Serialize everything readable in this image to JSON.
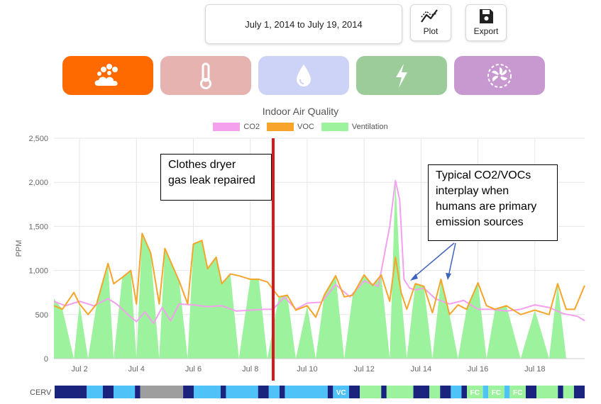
{
  "toolbar": {
    "date_range": "July 1, 2014 to July 19, 2014",
    "plot_label": "Plot",
    "export_label": "Export"
  },
  "categories": [
    {
      "name": "air-quality",
      "icon": "air-quality-icon",
      "color": "#ff6a00",
      "active": true
    },
    {
      "name": "temperature",
      "icon": "thermometer-icon",
      "color": "#e6b3b0",
      "active": false
    },
    {
      "name": "humidity",
      "icon": "water-drop-icon",
      "color": "#cdd2f7",
      "active": false
    },
    {
      "name": "energy",
      "icon": "lightning-icon",
      "color": "#9ccc9a",
      "active": false
    },
    {
      "name": "ventilation",
      "icon": "fan-icon",
      "color": "#c898d0",
      "active": false
    }
  ],
  "annotations": {
    "left_text": [
      "Clothes dryer",
      "gas leak repaired"
    ],
    "right_text": [
      "Typical CO2/VOCs",
      "interplay when",
      "humans are primary",
      "emission sources"
    ]
  },
  "chart_data": {
    "type": "area",
    "title": "Indoor Air Quality",
    "ylabel": "PPM",
    "xlabel": "",
    "ylim": [
      0,
      2500
    ],
    "xlim": [
      1.1,
      19.75
    ],
    "yticks": [
      "0",
      "500",
      "1,000",
      "1,500",
      "2,000",
      "2,500"
    ],
    "xticks": [
      {
        "label": "Jul 2",
        "day": 2
      },
      {
        "label": "Jul 4",
        "day": 4
      },
      {
        "label": "Jul 6",
        "day": 6
      },
      {
        "label": "Jul 8",
        "day": 8
      },
      {
        "label": "Jul 10",
        "day": 10
      },
      {
        "label": "Jul 12",
        "day": 12
      },
      {
        "label": "Jul 14",
        "day": 14
      },
      {
        "label": "Jul 16",
        "day": 16
      },
      {
        "label": "Jul 18",
        "day": 18
      }
    ],
    "grid": true,
    "legend_position": "top-center",
    "series": [
      {
        "name": "CO2",
        "color": "#f4a0ee",
        "x": [
          1.1,
          1.5,
          2.0,
          2.5,
          3.0,
          3.3,
          3.7,
          4.0,
          4.3,
          4.6,
          4.9,
          5.2,
          5.5,
          6.0,
          6.5,
          7.0,
          7.5,
          8.0,
          8.5,
          8.8,
          9.2,
          9.6,
          10.0,
          10.5,
          11.0,
          11.5,
          12.0,
          12.5,
          12.9,
          13.1,
          13.25,
          13.4,
          13.6,
          13.8,
          14.1,
          14.5,
          15.0,
          15.5,
          16.0,
          16.5,
          17.0,
          17.5,
          18.0,
          18.5,
          19.0,
          19.5,
          19.75
        ],
        "y": [
          650,
          600,
          650,
          600,
          680,
          620,
          500,
          420,
          530,
          400,
          580,
          430,
          620,
          610,
          590,
          600,
          540,
          550,
          560,
          560,
          700,
          560,
          630,
          640,
          840,
          700,
          880,
          820,
          1500,
          2020,
          1800,
          900,
          800,
          780,
          800,
          680,
          620,
          660,
          560,
          560,
          540,
          560,
          610,
          580,
          510,
          480,
          430
        ]
      },
      {
        "name": "VOC",
        "color": "#f6a52a",
        "x": [
          1.1,
          1.4,
          1.8,
          2.0,
          2.3,
          2.6,
          3.0,
          3.2,
          3.5,
          3.8,
          4.0,
          4.2,
          4.5,
          4.8,
          5.0,
          5.5,
          5.8,
          6.0,
          6.3,
          6.5,
          6.8,
          7.0,
          7.3,
          7.6,
          8.0,
          8.3,
          8.6,
          9.0,
          9.3,
          9.6,
          10.0,
          10.3,
          10.6,
          11.0,
          11.3,
          11.6,
          12.0,
          12.3,
          12.6,
          12.9,
          13.1,
          13.3,
          13.5,
          13.8,
          14.1,
          14.4,
          14.7,
          15.0,
          15.3,
          15.6,
          16.0,
          16.3,
          16.6,
          17.0,
          17.5,
          18.0,
          18.5,
          18.8,
          19.1,
          19.4,
          19.75
        ],
        "y": [
          600,
          560,
          750,
          620,
          500,
          620,
          1080,
          850,
          920,
          1000,
          620,
          1420,
          1200,
          620,
          1250,
          880,
          620,
          1300,
          1340,
          1020,
          1150,
          850,
          960,
          940,
          900,
          900,
          870,
          700,
          720,
          550,
          600,
          470,
          720,
          940,
          700,
          720,
          950,
          830,
          950,
          650,
          1150,
          750,
          560,
          850,
          820,
          520,
          900,
          500,
          610,
          560,
          860,
          600,
          560,
          600,
          500,
          550,
          500,
          850,
          560,
          560,
          830
        ]
      },
      {
        "name": "Ventilation",
        "color": "#9df29d",
        "x": [
          1.1,
          1.4,
          1.8,
          2.0,
          2.3,
          2.6,
          3.0,
          3.2,
          3.5,
          3.8,
          4.0,
          4.2,
          4.5,
          4.8,
          5.0,
          5.5,
          5.8,
          6.0,
          6.3,
          6.5,
          6.8,
          7.0,
          7.3,
          7.6,
          8.0,
          8.3,
          8.6,
          9.0,
          9.3,
          9.6,
          10.0,
          10.3,
          10.6,
          11.0,
          11.3,
          11.6,
          12.0,
          12.3,
          12.6,
          12.9,
          13.1,
          13.3,
          13.5,
          13.8,
          14.1,
          14.4,
          14.7,
          15.0,
          15.3,
          15.6,
          16.0,
          16.3,
          16.6,
          17.0,
          17.5,
          18.0,
          18.5,
          18.8,
          19.1,
          19.4,
          19.75
        ],
        "y": [
          680,
          560,
          0,
          620,
          0,
          620,
          1080,
          0,
          920,
          1000,
          0,
          1420,
          1200,
          0,
          1250,
          880,
          0,
          1300,
          1340,
          1020,
          1150,
          850,
          960,
          0,
          900,
          900,
          0,
          700,
          720,
          0,
          600,
          0,
          720,
          940,
          0,
          720,
          950,
          830,
          950,
          0,
          2020,
          750,
          0,
          850,
          820,
          0,
          900,
          500,
          0,
          560,
          860,
          0,
          560,
          600,
          0,
          550,
          0,
          850,
          0,
          0,
          0
        ]
      }
    ]
  },
  "cerv_strip": {
    "label": "CERV",
    "segments": [
      {
        "color": "#1a237e",
        "w": 6
      },
      {
        "color": "#4fc3f7",
        "w": 3
      },
      {
        "color": "#1a237e",
        "w": 2
      },
      {
        "color": "#4fc3f7",
        "w": 4
      },
      {
        "color": "#1a237e",
        "w": 1
      },
      {
        "color": "#9e9e9e",
        "w": 8
      },
      {
        "color": "#1a237e",
        "w": 2
      },
      {
        "color": "#4fc3f7",
        "w": 5
      },
      {
        "color": "#1a237e",
        "w": 1
      },
      {
        "color": "#4fc3f7",
        "w": 6
      },
      {
        "color": "#1a237e",
        "w": 2
      },
      {
        "color": "#4fc3f7",
        "w": 2
      },
      {
        "color": "#1a237e",
        "w": 1
      },
      {
        "color": "#4fc3f7",
        "w": 8
      },
      {
        "color": "#1a237e",
        "w": 1
      },
      {
        "color": "#4fc3f7",
        "w": 3,
        "text": "VC"
      },
      {
        "color": "#1a237e",
        "w": 2
      },
      {
        "color": "#9df29d",
        "w": 4
      },
      {
        "color": "#1a237e",
        "w": 1
      },
      {
        "color": "#9df29d",
        "w": 5
      },
      {
        "color": "#1a237e",
        "w": 3
      },
      {
        "color": "#9df29d",
        "w": 2
      },
      {
        "color": "#1a237e",
        "w": 2
      },
      {
        "color": "#4fc3f7",
        "w": 2
      },
      {
        "color": "#1a237e",
        "w": 1
      },
      {
        "color": "#9df29d",
        "w": 3,
        "text": "FC"
      },
      {
        "color": "#4fc3f7",
        "w": 1
      },
      {
        "color": "#9df29d",
        "w": 3,
        "text": "FC"
      },
      {
        "color": "#4fc3f7",
        "w": 1
      },
      {
        "color": "#9df29d",
        "w": 3,
        "text": "FC"
      },
      {
        "color": "#1a237e",
        "w": 2
      },
      {
        "color": "#9df29d",
        "w": 4
      },
      {
        "color": "#1a237e",
        "w": 1
      },
      {
        "color": "#9df29d",
        "w": 2
      },
      {
        "color": "#1a237e",
        "w": 2
      }
    ]
  },
  "colors": {
    "event_line": "#d71920",
    "grid": "#e6e6e6",
    "annotation_arrow": "#3f63c0"
  }
}
